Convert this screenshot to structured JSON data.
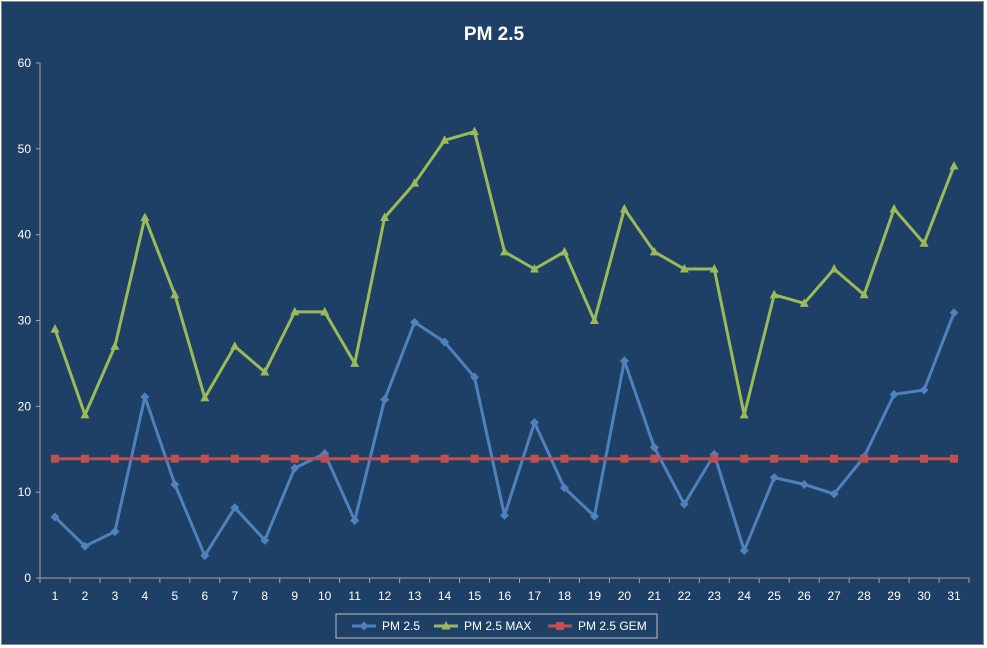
{
  "chart_data": {
    "type": "line",
    "title": "PM 2.5",
    "xlabel": "",
    "ylabel": "",
    "ylim": [
      0,
      60
    ],
    "yticks": [
      0,
      10,
      20,
      30,
      40,
      50,
      60
    ],
    "categories": [
      "1",
      "2",
      "3",
      "4",
      "5",
      "6",
      "7",
      "8",
      "9",
      "10",
      "11",
      "12",
      "13",
      "14",
      "15",
      "16",
      "17",
      "18",
      "19",
      "20",
      "21",
      "22",
      "23",
      "24",
      "25",
      "26",
      "27",
      "28",
      "29",
      "30",
      "31"
    ],
    "grid": false,
    "legend_position": "bottom",
    "background_color": "#1f4066",
    "series": [
      {
        "name": "PM 2.5",
        "color": "#4f81bd",
        "marker": "diamond",
        "values": [
          7.1,
          3.7,
          5.4,
          21.1,
          10.9,
          2.6,
          8.2,
          4.4,
          12.8,
          14.5,
          6.7,
          20.8,
          29.8,
          27.5,
          23.4,
          7.3,
          18.1,
          10.5,
          7.2,
          25.3,
          15.2,
          8.6,
          14.4,
          3.2,
          11.7,
          10.9,
          9.8,
          14.1,
          21.4,
          21.9,
          30.9
        ]
      },
      {
        "name": "PM 2.5 MAX",
        "color": "#9bbb59",
        "marker": "triangle",
        "values": [
          29,
          19,
          27,
          42,
          33,
          21,
          27,
          24,
          31,
          31,
          25,
          42,
          46,
          51,
          52,
          38,
          36,
          38,
          30,
          43,
          38,
          36,
          36,
          19,
          33,
          32,
          36,
          33,
          43,
          39,
          48
        ]
      },
      {
        "name": "PM 2.5 GEM",
        "color": "#c0504d",
        "marker": "square",
        "values": [
          13.9,
          13.9,
          13.9,
          13.9,
          13.9,
          13.9,
          13.9,
          13.9,
          13.9,
          13.9,
          13.9,
          13.9,
          13.9,
          13.9,
          13.9,
          13.9,
          13.9,
          13.9,
          13.9,
          13.9,
          13.9,
          13.9,
          13.9,
          13.9,
          13.9,
          13.9,
          13.9,
          13.9,
          13.9,
          13.9,
          13.9
        ]
      }
    ]
  }
}
